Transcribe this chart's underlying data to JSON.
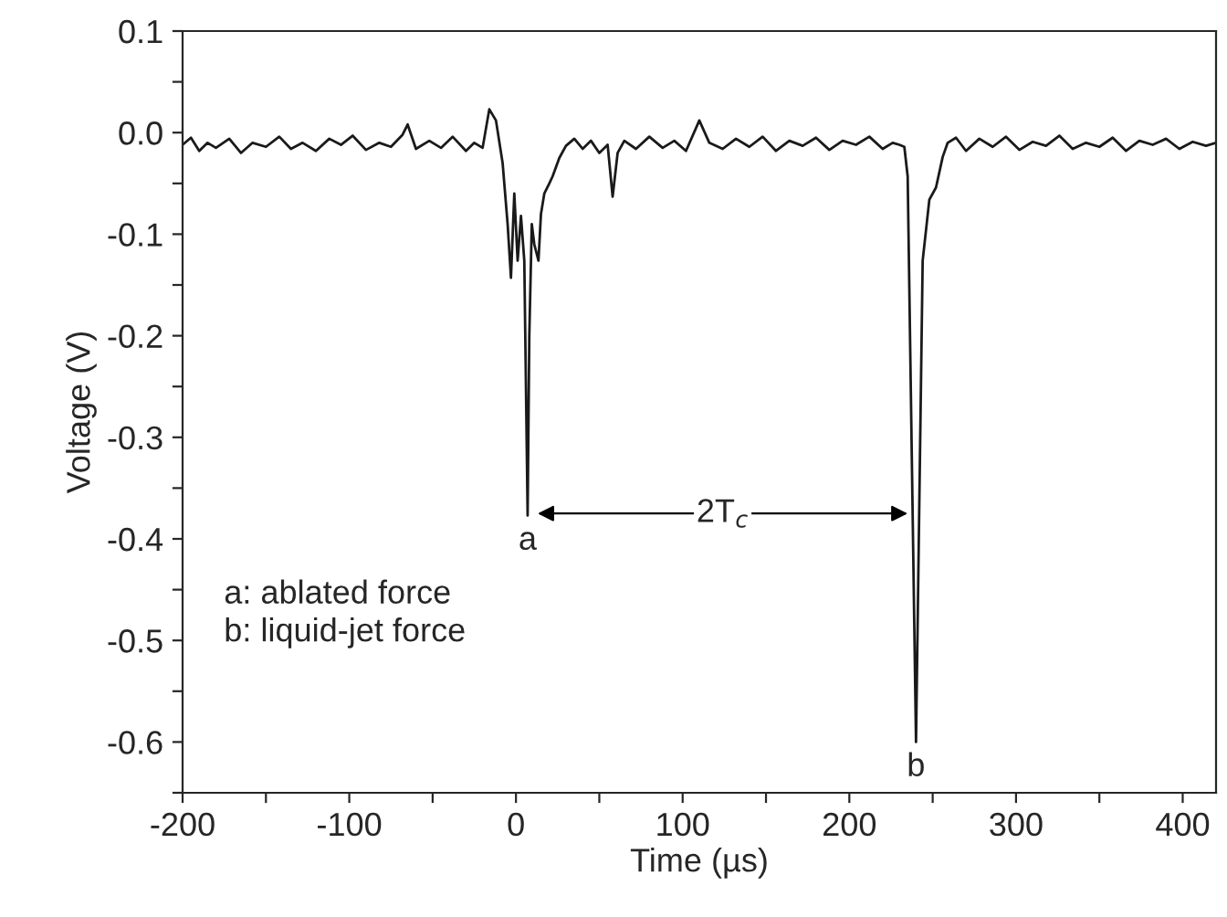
{
  "chart_data": {
    "type": "line",
    "xlabel": "Time (µs)",
    "ylabel": "Voltage (V)",
    "x": [
      -200,
      -195,
      -190,
      -185,
      -180,
      -172,
      -165,
      -158,
      -150,
      -142,
      -135,
      -128,
      -120,
      -112,
      -105,
      -98,
      -90,
      -82,
      -75,
      -68,
      -65,
      -60,
      -52,
      -45,
      -38,
      -30,
      -25,
      -20,
      -16,
      -12,
      -8,
      -5,
      -3,
      -1,
      1,
      3,
      5,
      7,
      8,
      9.5,
      11,
      13.5,
      15,
      17,
      20,
      22,
      26,
      30,
      35,
      40,
      45,
      50,
      55,
      58,
      61,
      65,
      72,
      80,
      88,
      95,
      102,
      110,
      116,
      124,
      132,
      140,
      148,
      156,
      164,
      172,
      180,
      188,
      196,
      204,
      212,
      220,
      226,
      230,
      233,
      235,
      240,
      244,
      248,
      252,
      256,
      259,
      264,
      270,
      278,
      286,
      294,
      302,
      310,
      318,
      326,
      334,
      342,
      350,
      358,
      366,
      374,
      382,
      390,
      398,
      406,
      414,
      420
    ],
    "series": [
      {
        "color": "#1a1a1a",
        "values": [
          -0.012,
          -0.005,
          -0.018,
          -0.01,
          -0.015,
          -0.006,
          -0.02,
          -0.01,
          -0.014,
          -0.004,
          -0.016,
          -0.01,
          -0.018,
          -0.006,
          -0.012,
          -0.003,
          -0.017,
          -0.01,
          -0.014,
          -0.002,
          0.008,
          -0.016,
          -0.008,
          -0.015,
          -0.004,
          -0.018,
          -0.01,
          -0.015,
          0.023,
          0.012,
          -0.03,
          -0.09,
          -0.143,
          -0.06,
          -0.126,
          -0.082,
          -0.126,
          -0.377,
          -0.2,
          -0.09,
          -0.11,
          -0.126,
          -0.08,
          -0.06,
          -0.05,
          -0.043,
          -0.025,
          -0.013,
          -0.006,
          -0.016,
          -0.008,
          -0.02,
          -0.012,
          -0.063,
          -0.02,
          -0.008,
          -0.016,
          -0.004,
          -0.015,
          -0.008,
          -0.018,
          0.012,
          -0.01,
          -0.016,
          -0.006,
          -0.014,
          -0.004,
          -0.018,
          -0.008,
          -0.013,
          -0.005,
          -0.017,
          -0.008,
          -0.012,
          -0.004,
          -0.016,
          -0.01,
          -0.012,
          -0.014,
          -0.043,
          -0.6,
          -0.126,
          -0.066,
          -0.054,
          -0.024,
          -0.01,
          -0.005,
          -0.018,
          -0.006,
          -0.014,
          -0.004,
          -0.017,
          -0.009,
          -0.013,
          -0.003,
          -0.016,
          -0.01,
          -0.014,
          -0.005,
          -0.018,
          -0.008,
          -0.012,
          -0.006,
          -0.016,
          -0.009,
          -0.013,
          -0.01
        ]
      }
    ],
    "xlim": [
      -200,
      420
    ],
    "xticks": [
      -200,
      {
        "value": -150,
        "label": null
      },
      -100,
      {
        "value": -50,
        "label": null
      },
      0,
      {
        "value": 50,
        "label": null
      },
      100,
      {
        "value": 150,
        "label": null
      },
      200,
      {
        "value": 250,
        "label": null
      },
      300,
      {
        "value": 350,
        "label": null
      },
      400
    ],
    "ylim": [
      -0.65,
      0.1
    ],
    "yticks": [
      {
        "value": -0.65,
        "label": null
      },
      -0.6,
      {
        "value": -0.55,
        "label": null
      },
      -0.5,
      {
        "value": -0.45,
        "label": null
      },
      -0.4,
      {
        "value": -0.35,
        "label": null
      },
      -0.3,
      {
        "value": -0.25,
        "label": null
      },
      -0.2,
      {
        "value": -0.15,
        "label": null
      },
      -0.1,
      {
        "value": -0.05,
        "label": null
      },
      {
        "value": 0,
        "label": "0.0"
      },
      {
        "value": 0.05,
        "label": null
      },
      0.1
    ],
    "grid": false,
    "legend": false,
    "annotations": [
      {
        "text": "a",
        "x": 7,
        "y": -0.377
      },
      {
        "text": "b",
        "x": 240,
        "y": -0.6
      },
      {
        "text": "2T$_{c}$",
        "x": 124,
        "y": -0.375
      },
      "a: ablated force\nb: liquid-jet force"
    ]
  }
}
